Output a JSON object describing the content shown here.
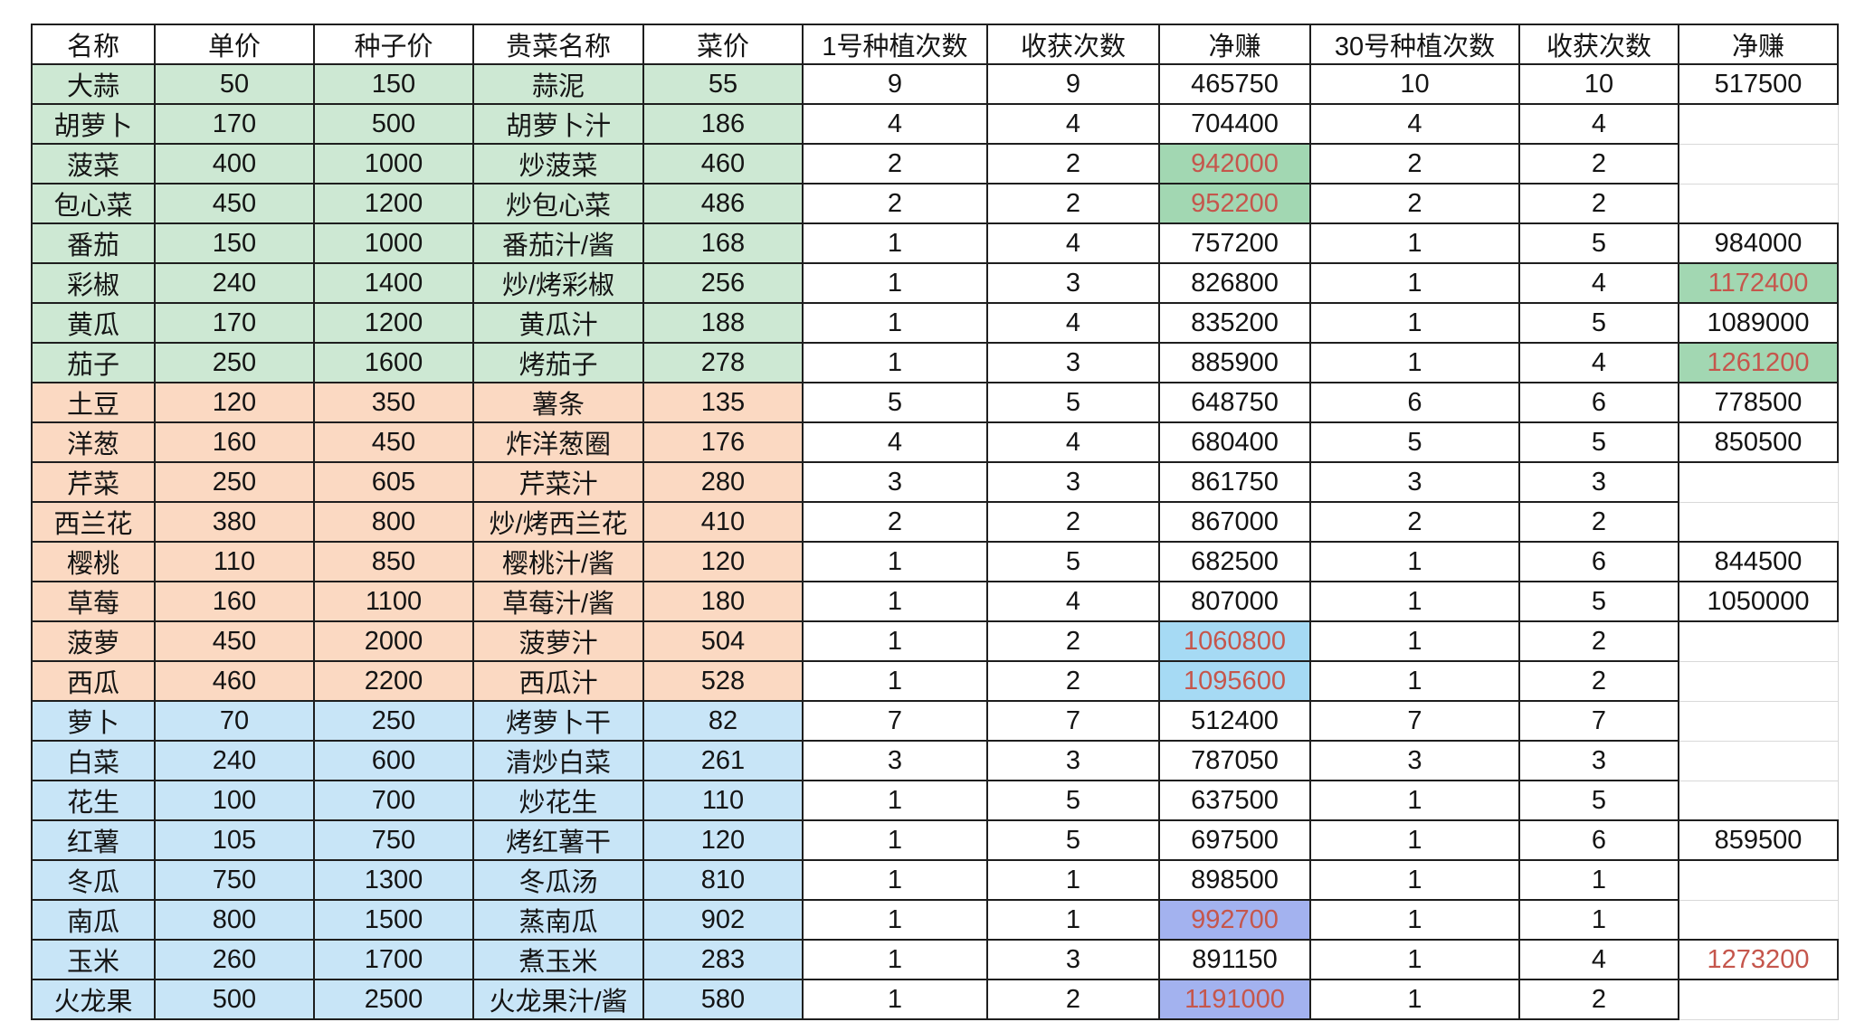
{
  "table": {
    "headers": [
      "名称",
      "单价",
      "种子价",
      "贵菜名称",
      "菜价",
      "1号种植次数",
      "收获次数",
      "净赚",
      "30号种植次数",
      "收获次数",
      "净赚"
    ],
    "rows": [
      {
        "band": "green",
        "p1": "plain",
        "p2": "plain",
        "cells": [
          "大蒜",
          "50",
          "150",
          "蒜泥",
          "55",
          "9",
          "9",
          "465750",
          "10",
          "10",
          "517500"
        ]
      },
      {
        "band": "green",
        "p1": "plain",
        "p2": "empty",
        "cells": [
          "胡萝卜",
          "170",
          "500",
          "胡萝卜汁",
          "186",
          "4",
          "4",
          "704400",
          "4",
          "4",
          ""
        ]
      },
      {
        "band": "green",
        "p1": "hl-green",
        "p2": "empty",
        "cells": [
          "菠菜",
          "400",
          "1000",
          "炒菠菜",
          "460",
          "2",
          "2",
          "942000",
          "2",
          "2",
          ""
        ]
      },
      {
        "band": "green",
        "p1": "hl-green",
        "p2": "empty",
        "cells": [
          "包心菜",
          "450",
          "1200",
          "炒包心菜",
          "486",
          "2",
          "2",
          "952200",
          "2",
          "2",
          ""
        ]
      },
      {
        "band": "green",
        "p1": "plain",
        "p2": "plain",
        "cells": [
          "番茄",
          "150",
          "1000",
          "番茄汁/酱",
          "168",
          "1",
          "4",
          "757200",
          "1",
          "5",
          "984000"
        ]
      },
      {
        "band": "green",
        "p1": "plain",
        "p2": "hl-green",
        "cells": [
          "彩椒",
          "240",
          "1400",
          "炒/烤彩椒",
          "256",
          "1",
          "3",
          "826800",
          "1",
          "4",
          "1172400"
        ]
      },
      {
        "band": "green",
        "p1": "plain",
        "p2": "plain",
        "cells": [
          "黄瓜",
          "170",
          "1200",
          "黄瓜汁",
          "188",
          "1",
          "4",
          "835200",
          "1",
          "5",
          "1089000"
        ]
      },
      {
        "band": "green",
        "p1": "plain",
        "p2": "hl-green",
        "cells": [
          "茄子",
          "250",
          "1600",
          "烤茄子",
          "278",
          "1",
          "3",
          "885900",
          "1",
          "4",
          "1261200"
        ]
      },
      {
        "band": "orange",
        "p1": "plain",
        "p2": "plain",
        "cells": [
          "土豆",
          "120",
          "350",
          "薯条",
          "135",
          "5",
          "5",
          "648750",
          "6",
          "6",
          "778500"
        ]
      },
      {
        "band": "orange",
        "p1": "plain",
        "p2": "plain",
        "cells": [
          "洋葱",
          "160",
          "450",
          "炸洋葱圈",
          "176",
          "4",
          "4",
          "680400",
          "5",
          "5",
          "850500"
        ]
      },
      {
        "band": "orange",
        "p1": "plain",
        "p2": "empty",
        "cells": [
          "芹菜",
          "250",
          "605",
          "芹菜汁",
          "280",
          "3",
          "3",
          "861750",
          "3",
          "3",
          ""
        ]
      },
      {
        "band": "orange",
        "p1": "plain",
        "p2": "empty",
        "cells": [
          "西兰花",
          "380",
          "800",
          "炒/烤西兰花",
          "410",
          "2",
          "2",
          "867000",
          "2",
          "2",
          ""
        ]
      },
      {
        "band": "orange",
        "p1": "plain",
        "p2": "plain",
        "cells": [
          "樱桃",
          "110",
          "850",
          "樱桃汁/酱",
          "120",
          "1",
          "5",
          "682500",
          "1",
          "6",
          "844500"
        ]
      },
      {
        "band": "orange",
        "p1": "plain",
        "p2": "plain",
        "cells": [
          "草莓",
          "160",
          "1100",
          "草莓汁/酱",
          "180",
          "1",
          "4",
          "807000",
          "1",
          "5",
          "1050000"
        ]
      },
      {
        "band": "orange",
        "p1": "hl-cyan",
        "p2": "empty",
        "cells": [
          "菠萝",
          "450",
          "2000",
          "菠萝汁",
          "504",
          "1",
          "2",
          "1060800",
          "1",
          "2",
          ""
        ]
      },
      {
        "band": "orange",
        "p1": "hl-cyan",
        "p2": "empty",
        "cells": [
          "西瓜",
          "460",
          "2200",
          "西瓜汁",
          "528",
          "1",
          "2",
          "1095600",
          "1",
          "2",
          ""
        ]
      },
      {
        "band": "blue",
        "p1": "plain",
        "p2": "empty",
        "cells": [
          "萝卜",
          "70",
          "250",
          "烤萝卜干",
          "82",
          "7",
          "7",
          "512400",
          "7",
          "7",
          ""
        ]
      },
      {
        "band": "blue",
        "p1": "plain",
        "p2": "empty",
        "cells": [
          "白菜",
          "240",
          "600",
          "清炒白菜",
          "261",
          "3",
          "3",
          "787050",
          "3",
          "3",
          ""
        ]
      },
      {
        "band": "blue",
        "p1": "plain",
        "p2": "empty",
        "cells": [
          "花生",
          "100",
          "700",
          "炒花生",
          "110",
          "1",
          "5",
          "637500",
          "1",
          "5",
          ""
        ]
      },
      {
        "band": "blue",
        "p1": "plain",
        "p2": "plain",
        "cells": [
          "红薯",
          "105",
          "750",
          "烤红薯干",
          "120",
          "1",
          "5",
          "697500",
          "1",
          "6",
          "859500"
        ]
      },
      {
        "band": "blue",
        "p1": "plain",
        "p2": "empty",
        "cells": [
          "冬瓜",
          "750",
          "1300",
          "冬瓜汤",
          "810",
          "1",
          "1",
          "898500",
          "1",
          "1",
          ""
        ]
      },
      {
        "band": "blue",
        "p1": "hl-violet",
        "p2": "empty",
        "cells": [
          "南瓜",
          "800",
          "1500",
          "蒸南瓜",
          "902",
          "1",
          "1",
          "992700",
          "1",
          "1",
          ""
        ]
      },
      {
        "band": "blue",
        "p1": "plain",
        "p2": "red",
        "cells": [
          "玉米",
          "260",
          "1700",
          "煮玉米",
          "283",
          "1",
          "3",
          "891150",
          "1",
          "4",
          "1273200"
        ]
      },
      {
        "band": "blue",
        "p1": "hl-violet",
        "p2": "empty",
        "cells": [
          "火龙果",
          "500",
          "2500",
          "火龙果汁/酱",
          "580",
          "1",
          "2",
          "1191000",
          "1",
          "2",
          ""
        ]
      }
    ]
  },
  "colors": {
    "band_green": "#cde8d3",
    "band_orange": "#fbd9c2",
    "band_blue": "#c8e5f7",
    "highlight_green": "#a2d7b2",
    "highlight_cyan": "#a6daf4",
    "highlight_violet": "#a3b2ef",
    "highlight_text_red": "#c5564c",
    "border_black": "#1e1e1e",
    "grid_gray": "#d9d9d9"
  }
}
